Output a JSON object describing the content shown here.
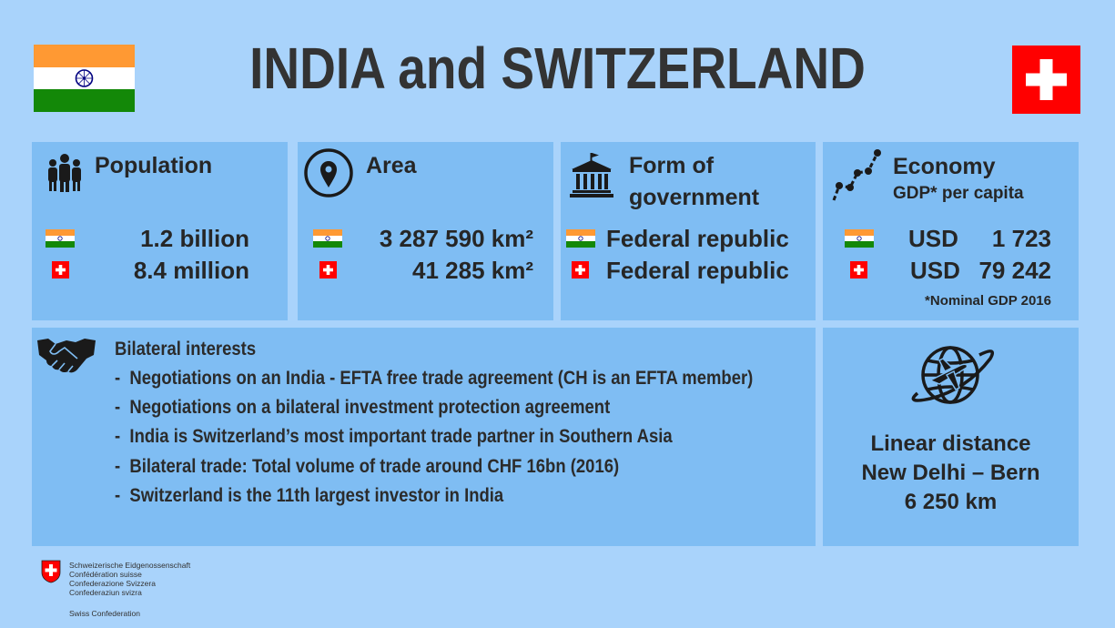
{
  "title": "INDIA and SWITZERLAND",
  "population": {
    "heading": "Population",
    "india": "1.2 billion",
    "switzerland": "8.4 million"
  },
  "area": {
    "heading": "Area",
    "india": "3 287 590 km²",
    "switzerland": "41 285 km²"
  },
  "government": {
    "heading_line1": "Form of",
    "heading_line2": "government",
    "india": "Federal republic",
    "switzerland": "Federal republic"
  },
  "economy": {
    "heading": "Economy",
    "subheading": "GDP* per capita",
    "currency": "USD",
    "india": "1 723",
    "switzerland": "79 242",
    "footnote": "*Nominal GDP 2016"
  },
  "bilateral": {
    "heading": "Bilateral interests",
    "items": [
      "Negotiations on an India - EFTA free trade agreement (CH is an EFTA member)",
      "Negotiations on a bilateral investment protection agreement",
      "India is Switzerland’s most important trade partner in Southern Asia",
      "Bilateral trade: Total volume of trade around CHF 16bn (2016)",
      "Switzerland is the 11th largest investor in India"
    ]
  },
  "distance": {
    "line1": "Linear distance",
    "line2": "New Delhi – Bern",
    "line3": "6 250 km"
  },
  "footer": {
    "lines": [
      "Schweizerische Eidgenossenschaft",
      "Confédération suisse",
      "Confederazione Svizzera",
      "Confederaziun svizra"
    ],
    "english": "Swiss Confederation"
  },
  "colors": {
    "background": "#a9d3fb",
    "card": "#7fbdf3",
    "india_saffron": "#ff9933",
    "india_green": "#138808",
    "swiss_red": "#ff0000"
  },
  "icons": [
    "people-icon",
    "map-pin-icon",
    "government-building-icon",
    "growth-chart-icon",
    "handshake-icon",
    "globe-airplane-icon"
  ]
}
